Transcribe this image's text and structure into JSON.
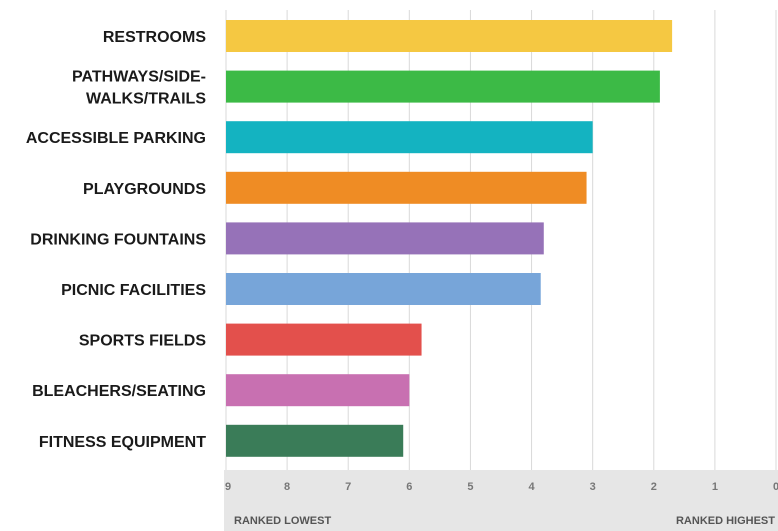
{
  "chart_data": {
    "type": "bar",
    "orientation": "horizontal",
    "title": "",
    "xlabel_low": "RANKED LOWEST",
    "xlabel_high": "RANKED HIGHEST",
    "x_reversed": true,
    "xlim": [
      9,
      0
    ],
    "xticks": [
      "9",
      "8",
      "7",
      "6",
      "5",
      "4",
      "3",
      "2",
      "1",
      "0"
    ],
    "grid": true,
    "categories": [
      {
        "label": [
          "RESTROOMS"
        ],
        "value": 1.7,
        "color": "#f5c842"
      },
      {
        "label": [
          "PATHWAYS/SIDE-",
          "WALKS/TRAILS"
        ],
        "value": 1.9,
        "color": "#3cba46"
      },
      {
        "label": [
          "ACCESSIBLE PARKING"
        ],
        "value": 3.0,
        "color": "#14b3c1"
      },
      {
        "label": [
          "PLAYGROUNDS"
        ],
        "value": 3.1,
        "color": "#ef8c24"
      },
      {
        "label": [
          "DRINKING FOUNTAINS"
        ],
        "value": 3.8,
        "color": "#9672b8"
      },
      {
        "label": [
          "PICNIC FACILITIES"
        ],
        "value": 3.85,
        "color": "#77a5d9"
      },
      {
        "label": [
          "SPORTS FIELDS"
        ],
        "value": 5.8,
        "color": "#e3504c"
      },
      {
        "label": [
          "BLEACHERS/SEATING"
        ],
        "value": 6.0,
        "color": "#c870b1"
      },
      {
        "label": [
          "FITNESS EQUIPMENT"
        ],
        "value": 6.1,
        "color": "#3a7c58"
      }
    ]
  }
}
